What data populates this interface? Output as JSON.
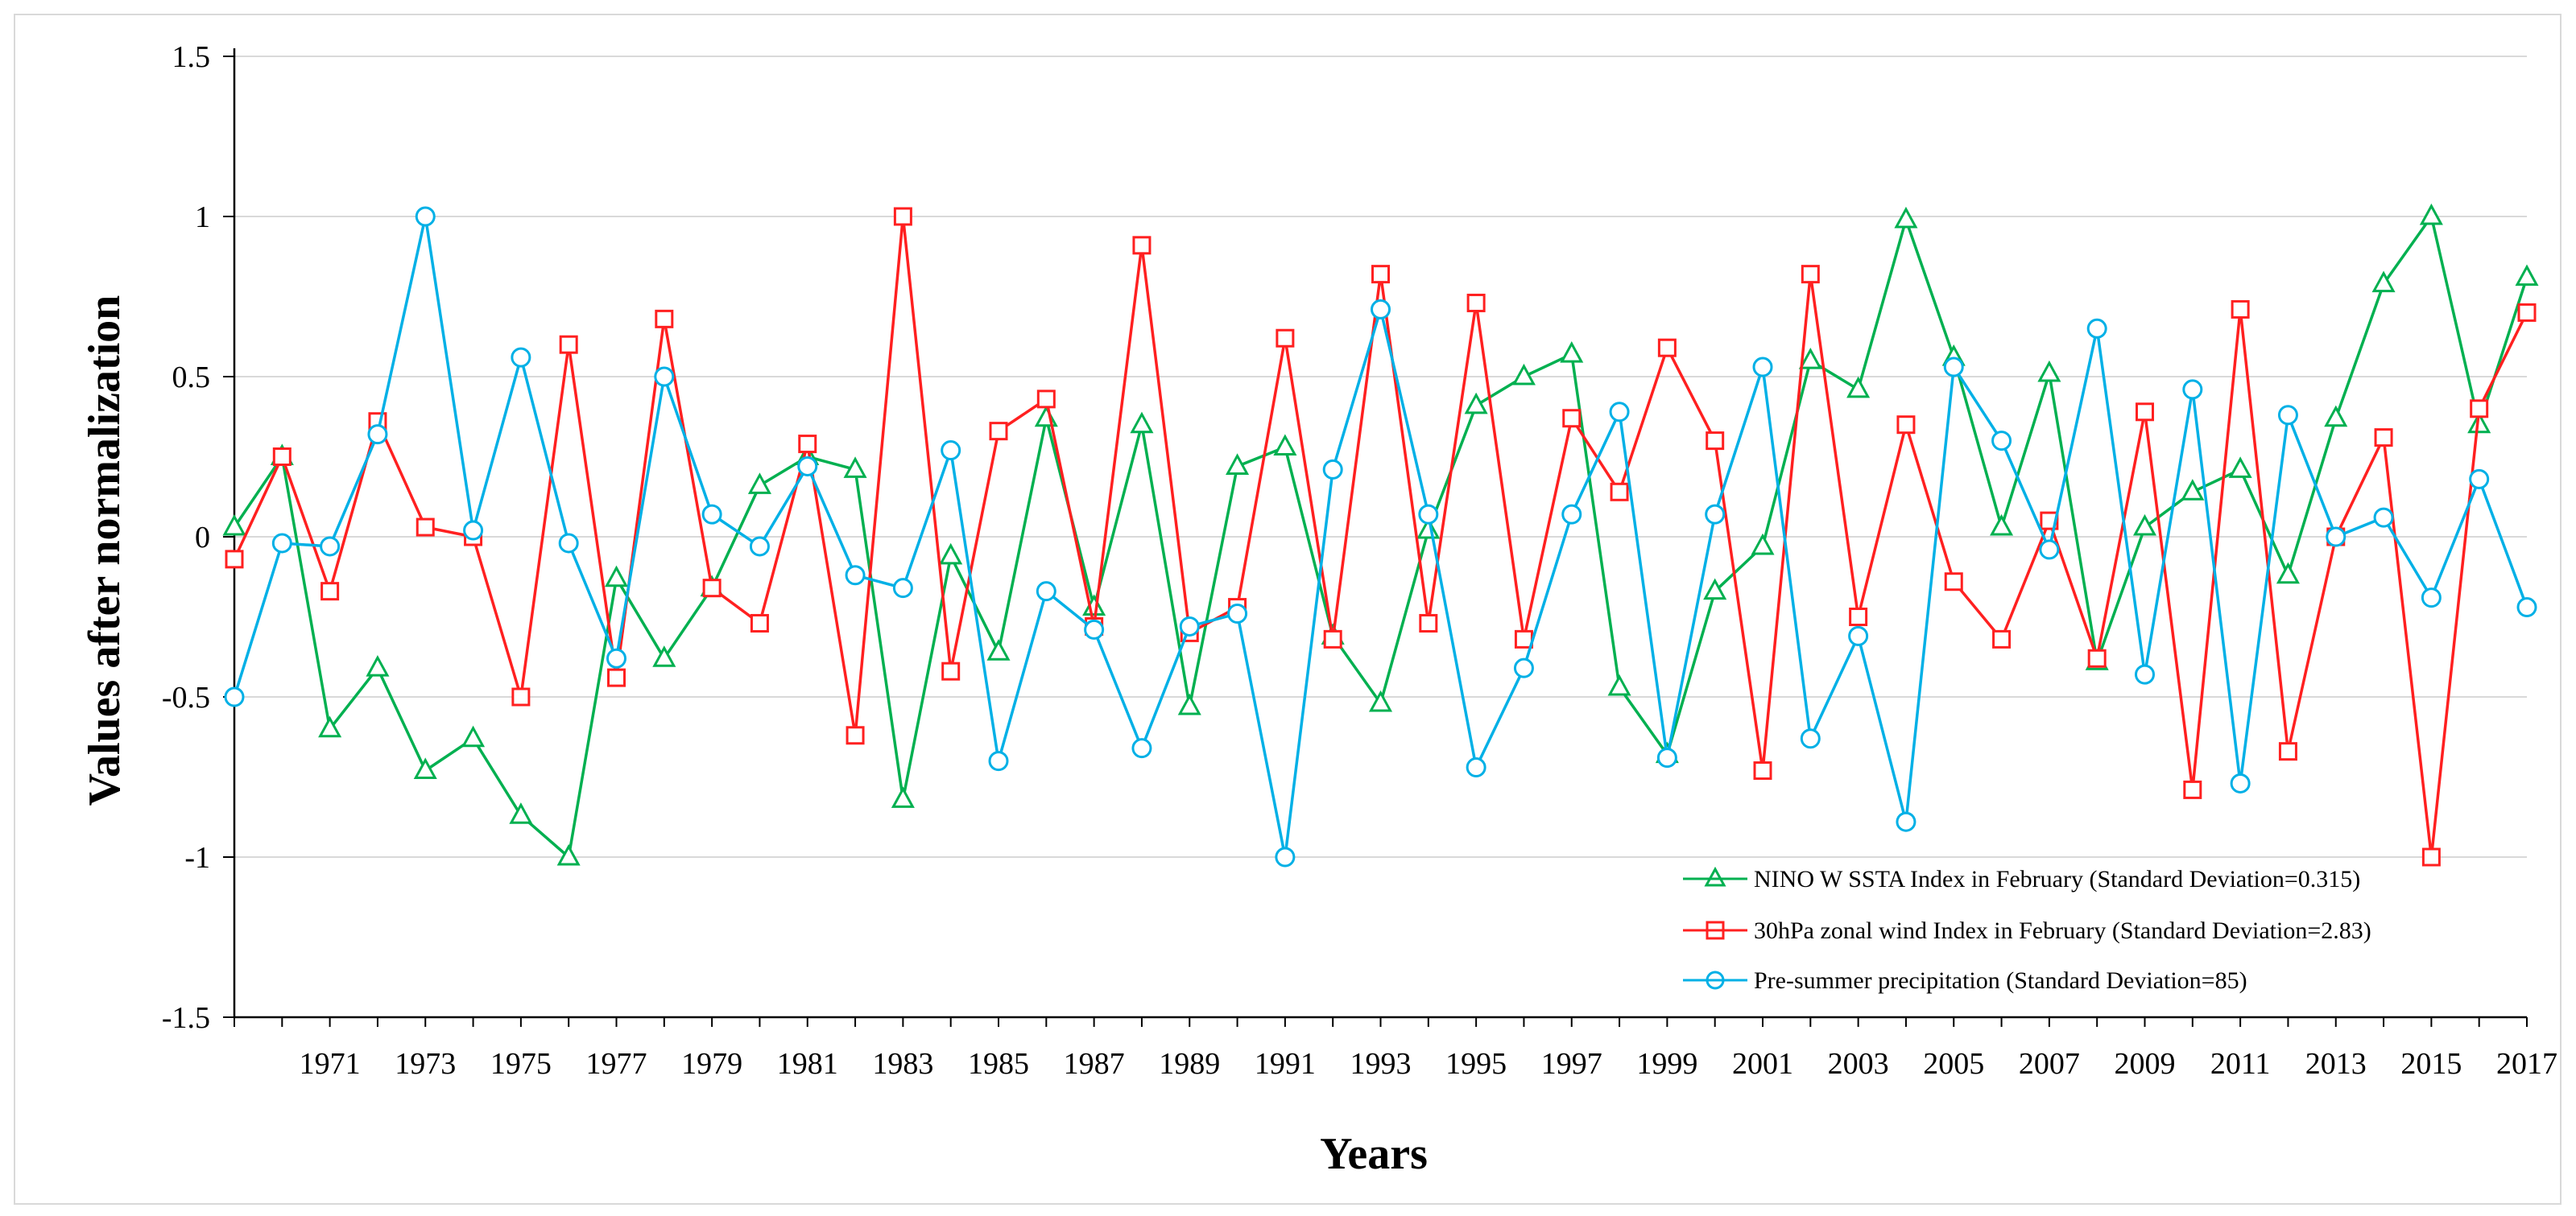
{
  "chart_data": {
    "type": "line",
    "title": "",
    "xlabel": "Years",
    "ylabel": "Values after normalization",
    "ylim": [
      -1.5,
      1.5
    ],
    "yticks": [
      -1.5,
      -1,
      -0.5,
      0,
      0.5,
      1,
      1.5
    ],
    "ytick_labels": [
      "-1.5",
      "-1",
      "-0.5",
      "0",
      "0.5",
      "1",
      "1.5"
    ],
    "x": [
      1969,
      1970,
      1971,
      1972,
      1973,
      1974,
      1975,
      1976,
      1977,
      1978,
      1979,
      1980,
      1981,
      1982,
      1983,
      1984,
      1985,
      1986,
      1987,
      1988,
      1989,
      1990,
      1991,
      1992,
      1993,
      1994,
      1995,
      1996,
      1997,
      1998,
      1999,
      2000,
      2001,
      2002,
      2003,
      2004,
      2005,
      2006,
      2007,
      2008,
      2009,
      2010,
      2011,
      2012,
      2013,
      2014,
      2015,
      2016,
      2017
    ],
    "xtick_labels": [
      "1971",
      "1973",
      "1975",
      "1977",
      "1979",
      "1981",
      "1983",
      "1985",
      "1987",
      "1989",
      "1991",
      "1993",
      "1995",
      "1997",
      "1999",
      "2001",
      "2003",
      "2005",
      "2007",
      "2009",
      "2011",
      "2013",
      "2015",
      "2017"
    ],
    "grid": true,
    "legend_position": "bottom-right",
    "series": [
      {
        "name": "NINO W SSTA Index in February (Standard Deviation=0.315)",
        "color": "#00b050",
        "marker": "triangle",
        "values": [
          0.03,
          0.25,
          -0.6,
          -0.41,
          -0.73,
          -0.63,
          -0.87,
          -1.0,
          -0.13,
          -0.38,
          -0.16,
          0.16,
          0.25,
          0.21,
          -0.82,
          -0.06,
          -0.36,
          0.37,
          -0.22,
          0.35,
          -0.53,
          0.22,
          0.28,
          -0.31,
          -0.52,
          0.02,
          0.41,
          0.5,
          0.57,
          -0.47,
          -0.68,
          -0.17,
          -0.03,
          0.55,
          0.46,
          0.99,
          0.56,
          0.03,
          0.51,
          -0.39,
          0.03,
          0.14,
          0.21,
          -0.12,
          0.37,
          0.79,
          1.0,
          0.35,
          0.81
        ]
      },
      {
        "name": "30hPa zonal wind Index in February (Standard Deviation=2.83)",
        "color": "#ff2020",
        "marker": "square",
        "values": [
          -0.07,
          0.25,
          -0.17,
          0.36,
          0.03,
          0.0,
          -0.5,
          0.6,
          -0.44,
          0.68,
          -0.16,
          -0.27,
          0.29,
          -0.62,
          1.0,
          -0.42,
          0.33,
          0.43,
          -0.28,
          0.91,
          -0.3,
          -0.22,
          0.62,
          -0.32,
          0.82,
          -0.27,
          0.73,
          -0.32,
          0.37,
          0.14,
          0.59,
          0.3,
          -0.73,
          0.82,
          -0.25,
          0.35,
          -0.14,
          -0.32,
          0.05,
          -0.38,
          0.39,
          -0.79,
          0.71,
          -0.67,
          0.0,
          0.31,
          -1.0,
          0.4,
          0.7
        ]
      },
      {
        "name": "Pre-summer precipitation (Standard Deviation=85)",
        "color": "#00b0e6",
        "marker": "circle",
        "values": [
          -0.5,
          -0.02,
          -0.03,
          0.32,
          1.0,
          0.02,
          0.56,
          -0.02,
          -0.38,
          0.5,
          0.07,
          -0.03,
          0.22,
          -0.12,
          -0.16,
          0.27,
          -0.7,
          -0.17,
          -0.29,
          -0.66,
          -0.28,
          -0.24,
          -1.0,
          0.21,
          0.71,
          0.07,
          -0.72,
          -0.41,
          0.07,
          0.39,
          -0.69,
          0.07,
          0.53,
          -0.63,
          -0.31,
          -0.89,
          0.53,
          0.3,
          -0.04,
          0.65,
          -0.43,
          0.46,
          -0.77,
          0.38,
          0.0,
          0.06,
          -0.19,
          0.18,
          -0.22
        ]
      }
    ]
  }
}
